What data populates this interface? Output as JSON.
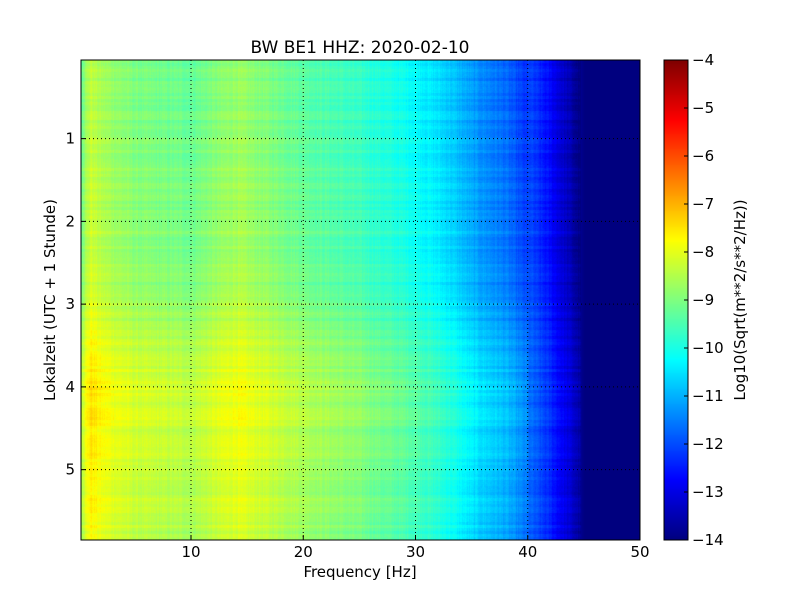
{
  "chart_data": {
    "type": "heatmap",
    "title": "BW BE1 HHZ: 2020-02-10",
    "xlabel": "Frequency [Hz]",
    "ylabel": "Lokalzeit (UTC + 1 Stunde)",
    "xlim": [
      0.2,
      50
    ],
    "ylim": [
      5.85,
      0.05
    ],
    "x_ticks": [
      10,
      20,
      30,
      40,
      50
    ],
    "y_ticks": [
      1,
      2,
      3,
      4,
      5
    ],
    "grid": true,
    "colormap": "jet",
    "colorbar": {
      "label": "Log10(Sqrt(m**2/s**2/Hz))",
      "range": [
        -14,
        -4
      ],
      "ticks": [
        -4,
        -5,
        -6,
        -7,
        -8,
        -9,
        -10,
        -11,
        -12,
        -13,
        -14
      ]
    },
    "spectrum_profile": {
      "frequency_hz": [
        0.2,
        1,
        2,
        5,
        10,
        14,
        20,
        25,
        30,
        33,
        35,
        38,
        40,
        42,
        44,
        45,
        50
      ],
      "log_amplitude": [
        -8.6,
        -7.8,
        -8.1,
        -8.5,
        -8.7,
        -8.2,
        -8.8,
        -9.2,
        -9.7,
        -10.2,
        -10.7,
        -11.2,
        -11.8,
        -12.5,
        -13.4,
        -14,
        -14
      ]
    },
    "time_periods": {
      "hours": [
        0.05,
        2.8,
        4.0,
        5.85
      ],
      "mean_offset_log": [
        -0.6,
        -0.3,
        0.4,
        0.1
      ]
    }
  }
}
